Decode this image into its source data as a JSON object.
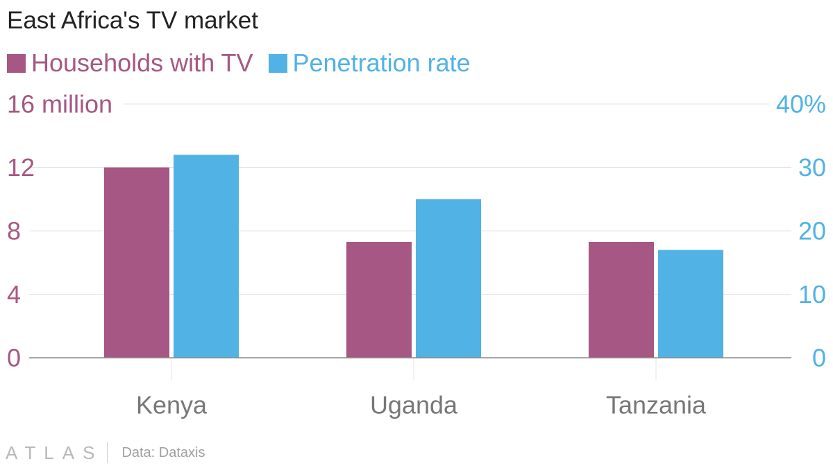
{
  "colors": {
    "households": "#A65783",
    "penetration": "#51B2E5",
    "grid": "#e5e5e5",
    "axis": "#888888",
    "category_text": "#777777",
    "title_text": "#222222"
  },
  "chart_data": {
    "type": "bar",
    "title": "East Africa's TV market",
    "categories": [
      "Kenya",
      "Uganda",
      "Tanzania"
    ],
    "series": [
      {
        "name": "Households with TV",
        "axis": "left",
        "values": [
          12,
          7.3,
          7.3
        ]
      },
      {
        "name": "Penetration rate",
        "axis": "right",
        "values": [
          32,
          25,
          17
        ]
      }
    ],
    "left_axis": {
      "range": [
        0,
        16
      ],
      "ticks": [
        0,
        4,
        8,
        12,
        16
      ],
      "tick_labels": [
        "0",
        "4",
        "8",
        "12",
        "16 million"
      ]
    },
    "right_axis": {
      "range": [
        0,
        40
      ],
      "ticks": [
        0,
        10,
        20,
        30,
        40
      ],
      "tick_labels": [
        "0",
        "10",
        "20",
        "30",
        "40%"
      ]
    },
    "grid": true,
    "legend_position": "top-left"
  },
  "footer": {
    "logo": "ATLAS",
    "source": "Data: Dataxis"
  }
}
